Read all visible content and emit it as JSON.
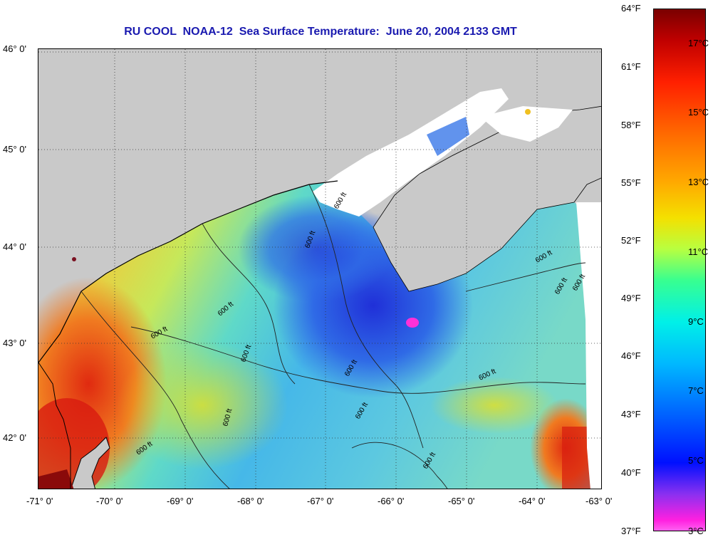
{
  "title": "RU COOL  NOAA-12  Sea Surface Temperature:  June 20, 2004 2133 GMT",
  "latitude_labels": [
    "46° 0'",
    "45° 0'",
    "44° 0'",
    "43° 0'",
    "42° 0'"
  ],
  "longitude_labels": [
    "-71° 0'",
    "-70° 0'",
    "-69° 0'",
    "-68° 0'",
    "-67° 0'",
    "-66° 0'",
    "-65° 0'",
    "-64° 0'",
    "-63° 0'"
  ],
  "colorbar": {
    "fahrenheit_ticks": [
      "64°F",
      "61°F",
      "58°F",
      "55°F",
      "52°F",
      "49°F",
      "46°F",
      "43°F",
      "40°F",
      "37°F"
    ],
    "celsius_ticks": [
      "17°C",
      "15°C",
      "13°C",
      "11°C",
      "9°C",
      "7°C",
      "5°C",
      "3°C"
    ]
  },
  "contour_label": "600 ft",
  "colors": {
    "land": "#c9c9c9",
    "cloud": "#ffffff",
    "title": "#1a1ab0"
  }
}
